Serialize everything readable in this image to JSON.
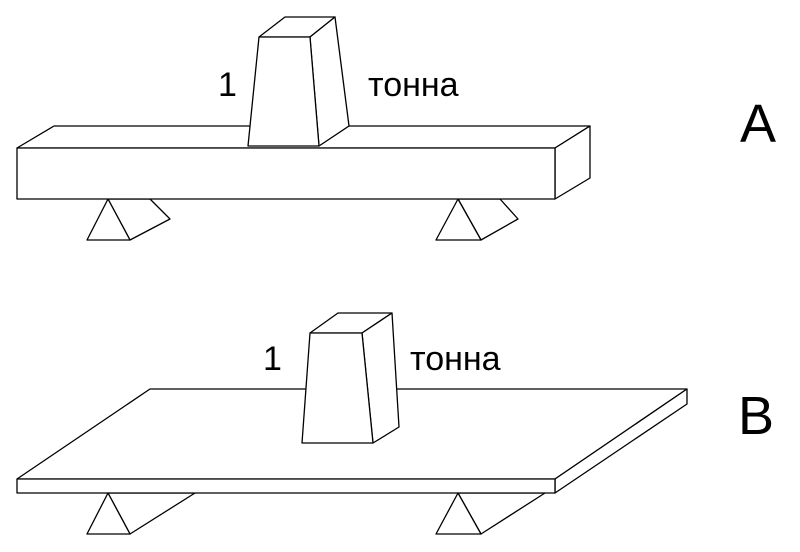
{
  "figure_a": {
    "weight_number": "1",
    "weight_unit": "тонна",
    "letter": "A"
  },
  "figure_b": {
    "weight_number": "1",
    "weight_unit": "тонна",
    "letter": "B"
  },
  "colors": {
    "line": "#000000",
    "background": "#ffffff"
  }
}
